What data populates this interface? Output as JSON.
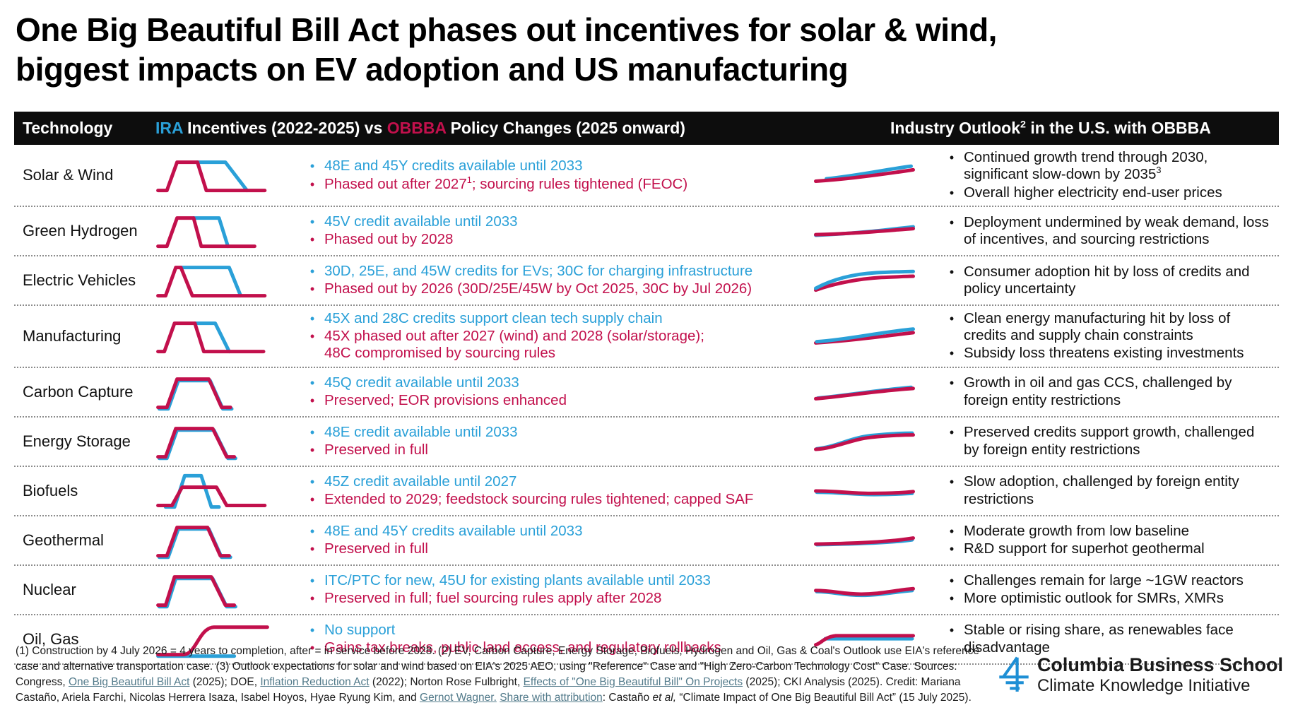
{
  "title": {
    "line1": "One Big Beautiful Bill Act phases out incentives for solar & wind,",
    "line2": "biggest impacts on EV adoption and US manufacturing"
  },
  "colors": {
    "blue": "#2AA0D8",
    "red": "#C2104C",
    "header_bg": "#0d0d0d",
    "logo_blue": "#1E8FD5"
  },
  "header": {
    "col1": "Technology",
    "col2_segments": [
      {
        "t": "IRA",
        "color": "blue"
      },
      {
        "t": " Incentives (2022-2025) vs "
      },
      {
        "t": "OBBBA",
        "color": "red"
      },
      {
        "t": " Policy Changes (2025 onward)"
      }
    ],
    "col3_segments": [
      {
        "t": "Industry Outlook"
      },
      {
        "sup": "2"
      },
      {
        "t": " in the U.S. with OBBBA"
      }
    ]
  },
  "legend_semantics": {
    "blue_line": "IRA incentives trajectory",
    "red_line": "OBBBA policy trajectory"
  },
  "rows": [
    {
      "technology": "Solar & Wind",
      "incentive_chart": "solar-wind",
      "outlook_chart": "solar-wind",
      "policy_bullets": [
        {
          "color": "blue",
          "segments": [
            {
              "t": "48E and 45Y credits available until 2033"
            }
          ]
        },
        {
          "color": "red",
          "segments": [
            {
              "t": "Phased out after 2027"
            },
            {
              "sup": "1"
            },
            {
              "t": "; sourcing rules tightened (FEOC)"
            }
          ]
        }
      ],
      "outlook_bullets": [
        {
          "segments": [
            {
              "t": "Continued growth trend through 2030, significant slow-down by 2035"
            },
            {
              "sup": "3"
            }
          ]
        },
        {
          "segments": [
            {
              "t": "Overall higher electricity end-user prices"
            }
          ]
        }
      ]
    },
    {
      "technology": "Green Hydrogen",
      "incentive_chart": "green-hydrogen",
      "outlook_chart": "green-hydrogen",
      "policy_bullets": [
        {
          "color": "blue",
          "segments": [
            {
              "t": "45V credit available until 2033"
            }
          ]
        },
        {
          "color": "red",
          "segments": [
            {
              "t": "Phased out by 2028"
            }
          ]
        }
      ],
      "outlook_bullets": [
        {
          "segments": [
            {
              "t": "Deployment undermined by weak demand, loss of incentives, and sourcing restrictions"
            }
          ]
        }
      ]
    },
    {
      "technology": "Electric Vehicles",
      "incentive_chart": "electric-vehicles",
      "outlook_chart": "electric-vehicles",
      "policy_bullets": [
        {
          "color": "blue",
          "segments": [
            {
              "t": "30D, 25E, and 45W credits for EVs; 30C for charging infrastructure"
            }
          ]
        },
        {
          "color": "red",
          "segments": [
            {
              "t": "Phased out by 2026 (30D/25E/45W by Oct 2025, 30C by Jul 2026)"
            }
          ]
        }
      ],
      "outlook_bullets": [
        {
          "segments": [
            {
              "t": "Consumer adoption hit by loss of credits and policy uncertainty"
            }
          ]
        }
      ]
    },
    {
      "technology": "Manufacturing",
      "incentive_chart": "manufacturing",
      "outlook_chart": "manufacturing",
      "policy_bullets": [
        {
          "color": "blue",
          "segments": [
            {
              "t": "45X and 28C credits support clean tech supply chain"
            }
          ]
        },
        {
          "color": "red",
          "segments": [
            {
              "t": "45X phased out after 2027 (wind) and 2028 (solar/storage);"
            },
            {
              "br": true
            },
            {
              "t": "48C compromised by sourcing rules"
            }
          ]
        }
      ],
      "outlook_bullets": [
        {
          "segments": [
            {
              "t": "Clean energy manufacturing hit by loss of credits and supply chain constraints"
            }
          ]
        },
        {
          "segments": [
            {
              "t": "Subsidy loss threatens existing investments"
            }
          ]
        }
      ]
    },
    {
      "technology": "Carbon Capture",
      "incentive_chart": "carbon-capture",
      "outlook_chart": "carbon-capture",
      "policy_bullets": [
        {
          "color": "blue",
          "segments": [
            {
              "t": "45Q credit available until 2033"
            }
          ]
        },
        {
          "color": "red",
          "segments": [
            {
              "t": "Preserved; EOR provisions enhanced"
            }
          ]
        }
      ],
      "outlook_bullets": [
        {
          "segments": [
            {
              "t": "Growth in oil and gas CCS, challenged by foreign entity restrictions"
            }
          ]
        }
      ]
    },
    {
      "technology": "Energy Storage",
      "incentive_chart": "energy-storage",
      "outlook_chart": "energy-storage",
      "policy_bullets": [
        {
          "color": "blue",
          "segments": [
            {
              "t": "48E credit available until 2033"
            }
          ]
        },
        {
          "color": "red",
          "segments": [
            {
              "t": "Preserved in full"
            }
          ]
        }
      ],
      "outlook_bullets": [
        {
          "segments": [
            {
              "t": "Preserved credits support growth, challenged by foreign entity restrictions"
            }
          ]
        }
      ]
    },
    {
      "technology": "Biofuels",
      "incentive_chart": "biofuels",
      "outlook_chart": "biofuels",
      "policy_bullets": [
        {
          "color": "blue",
          "segments": [
            {
              "t": "45Z credit available until 2027"
            }
          ]
        },
        {
          "color": "red",
          "segments": [
            {
              "t": "Extended to 2029; feedstock sourcing rules tightened; capped SAF"
            }
          ]
        }
      ],
      "outlook_bullets": [
        {
          "segments": [
            {
              "t": "Slow adoption, challenged by foreign entity restrictions"
            }
          ]
        }
      ]
    },
    {
      "technology": "Geothermal",
      "incentive_chart": "geothermal",
      "outlook_chart": "geothermal",
      "policy_bullets": [
        {
          "color": "blue",
          "segments": [
            {
              "t": "48E and 45Y credits available until 2033"
            }
          ]
        },
        {
          "color": "red",
          "segments": [
            {
              "t": "Preserved in full"
            }
          ]
        }
      ],
      "outlook_bullets": [
        {
          "segments": [
            {
              "t": "Moderate growth from low baseline"
            }
          ]
        },
        {
          "segments": [
            {
              "t": "R&D support for superhot geothermal"
            }
          ]
        }
      ]
    },
    {
      "technology": "Nuclear",
      "incentive_chart": "nuclear",
      "outlook_chart": "nuclear",
      "policy_bullets": [
        {
          "color": "blue",
          "segments": [
            {
              "t": "ITC/PTC for new, 45U for existing plants available until 2033"
            }
          ]
        },
        {
          "color": "red",
          "segments": [
            {
              "t": "Preserved in full; fuel sourcing rules apply after 2028"
            }
          ]
        }
      ],
      "outlook_bullets": [
        {
          "segments": [
            {
              "t": "Challenges remain for large ~1GW reactors"
            }
          ]
        },
        {
          "segments": [
            {
              "t": "More optimistic outlook for SMRs, XMRs"
            }
          ]
        }
      ]
    },
    {
      "technology": "Oil, Gas",
      "incentive_chart": "oil-gas",
      "outlook_chart": "oil-gas",
      "policy_bullets": [
        {
          "color": "blue",
          "segments": [
            {
              "t": "No support"
            }
          ]
        },
        {
          "color": "red",
          "segments": [
            {
              "t": "Gains tax breaks, public land access, and regulatory rollbacks"
            }
          ]
        }
      ],
      "outlook_bullets": [
        {
          "segments": [
            {
              "t": "Stable or rising share, as renewables face disadvantage"
            }
          ]
        }
      ]
    }
  ],
  "footnote_segments": [
    {
      "t": "(1) Construction by 4 July 2026 = 4 years to completion, after = in service before 2028. (2) EV, Carbon Capture, Energy Storage, Biofuels, Hydrogen and Oil, Gas & Coal's Outlook use EIA's reference case and alternative transportation case. (3) Outlook expectations for solar and wind based on EIA's 2025 AEO, using \"Reference\" Case and \"High Zero-Carbon Technology Cost\" Case. Sources: Congress, "
    },
    {
      "t": "One Big Beautiful Bill Act",
      "link": true
    },
    {
      "t": " (2025); DOE, "
    },
    {
      "t": "Inflation Reduction Act",
      "link": true
    },
    {
      "t": " (2022); Norton Rose Fulbright, "
    },
    {
      "t": "Effects of \"One Big Beautiful Bill\" On Projects",
      "link": true
    },
    {
      "t": " (2025); CKI Analysis (2025). Credit: Mariana Castaño, Ariela Farchi, Nicolas Herrera Isaza, Isabel Hoyos, Hyae Ryung Kim, and "
    },
    {
      "t": "Gernot Wagner.",
      "link": true
    },
    {
      "t": " "
    },
    {
      "t": "Share with attribution",
      "link": true
    },
    {
      "t": ": Castaño "
    },
    {
      "t": "et al,",
      "italic": true
    },
    {
      "t": " “Climate Impact of One Big Beautiful Bill Act” (15 July 2025)."
    }
  ],
  "logo": {
    "icon": "cki-logo-mark-icon",
    "brand": "Columbia Business School",
    "sub": "Climate Knowledge Initiative"
  }
}
